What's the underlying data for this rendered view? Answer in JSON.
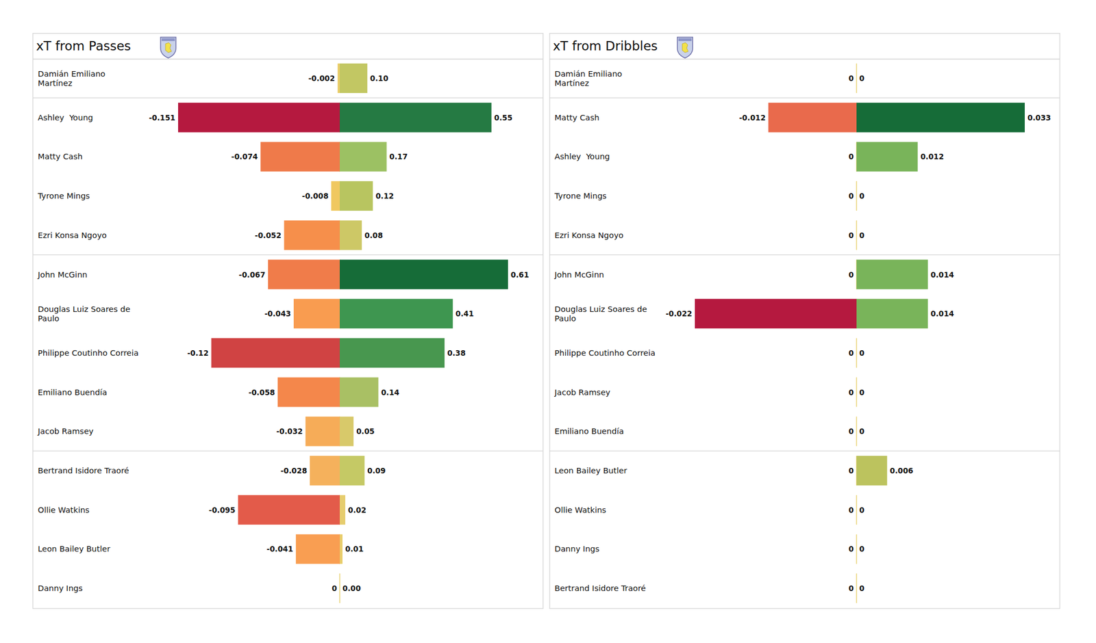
{
  "chart_data": [
    {
      "type": "bar",
      "orientation": "horizontal",
      "title": "xT from Passes",
      "data_labels": true,
      "tick_labels": false,
      "grid": false,
      "xlim": [
        -0.151,
        0.61
      ],
      "categories": [
        "Damián Emiliano\nMartínez",
        "Ashley  Young",
        "Matty Cash",
        "Tyrone Mings",
        "Ezri Konsa Ngoyo",
        "John McGinn",
        "Douglas Luiz Soares de\nPaulo",
        "Philippe Coutinho Correia",
        "Emiliano Buendía",
        "Jacob Ramsey",
        "Bertrand Isidore Traoré",
        "Ollie Watkins",
        "Leon Bailey Butler",
        "Danny Ings"
      ],
      "series": [
        {
          "values": [
            -0.002,
            -0.151,
            -0.074,
            -0.008,
            -0.052,
            -0.067,
            -0.043,
            -0.12,
            -0.058,
            -0.032,
            -0.028,
            -0.095,
            -0.041,
            0
          ],
          "value_labels": [
            "-0.002",
            "-0.151",
            "-0.074",
            "-0.008",
            "-0.052",
            "-0.067",
            "-0.043",
            "-0.12",
            "-0.058",
            "-0.032",
            "-0.028",
            "-0.095",
            "-0.041",
            "0"
          ],
          "colors": [
            "#eacd6a",
            "#b5193f",
            "#ef7a4a",
            "#f0c860",
            "#f68f4b",
            "#f07c4a",
            "#f99c50",
            "#d04343",
            "#f4874b",
            "#f6ac58",
            "#f5b15c",
            "#e35b4a",
            "#f99e52",
            "#e9d06f"
          ]
        },
        {
          "values": [
            0.1,
            0.55,
            0.17,
            0.12,
            0.08,
            0.61,
            0.41,
            0.38,
            0.14,
            0.05,
            0.09,
            0.02,
            0.01,
            0.0
          ],
          "value_labels": [
            "0.10",
            "0.55",
            "0.17",
            "0.12",
            "0.08",
            "0.61",
            "0.41",
            "0.38",
            "0.14",
            "0.05",
            "0.09",
            "0.02",
            "0.01",
            "0.00"
          ],
          "colors": [
            "#c2c763",
            "#257a43",
            "#9cc163",
            "#b8c560",
            "#cdc866",
            "#166c38",
            "#3e9650",
            "#48974f",
            "#a9c064",
            "#d8c96a",
            "#c5c965",
            "#e6cd6e",
            "#e8cd6c",
            "#e9d06f"
          ]
        }
      ]
    },
    {
      "type": "bar",
      "orientation": "horizontal",
      "title": "xT from Dribbles",
      "data_labels": true,
      "tick_labels": false,
      "grid": false,
      "xlim": [
        -0.022,
        0.033
      ],
      "categories": [
        "Damián Emiliano\nMartínez",
        "Matty Cash",
        "Ashley  Young",
        "Tyrone Mings",
        "Ezri Konsa Ngoyo",
        "John McGinn",
        "Douglas Luiz Soares de\nPaulo",
        "Philippe Coutinho Correia",
        "Jacob Ramsey",
        "Emiliano Buendía",
        "Leon Bailey Butler",
        "Ollie Watkins",
        "Danny Ings",
        "Bertrand Isidore Traoré"
      ],
      "series": [
        {
          "values": [
            0,
            -0.012,
            0,
            0,
            0,
            0,
            -0.022,
            0,
            0,
            0,
            0,
            0,
            0,
            0
          ],
          "value_labels": [
            "0",
            "-0.012",
            "0",
            "0",
            "0",
            "0",
            "-0.022",
            "0",
            "0",
            "0",
            "0",
            "0",
            "0",
            "0"
          ],
          "colors": [
            "#e9d06f",
            "#e96a4c",
            "#e9d06f",
            "#e9d06f",
            "#e9d06f",
            "#e9d06f",
            "#b5193f",
            "#e9d06f",
            "#e9d06f",
            "#e9d06f",
            "#e9d06f",
            "#e9d06f",
            "#e9d06f",
            "#e9d06f"
          ]
        },
        {
          "values": [
            0,
            0.033,
            0.012,
            0,
            0,
            0.014,
            0.014,
            0,
            0,
            0,
            0.006,
            0,
            0,
            0
          ],
          "value_labels": [
            "0",
            "0.033",
            "0.012",
            "0",
            "0",
            "0.014",
            "0.014",
            "0",
            "0",
            "0",
            "0.006",
            "0",
            "0",
            "0"
          ],
          "colors": [
            "#e9d06f",
            "#166c38",
            "#79b45a",
            "#e9d06f",
            "#e9d06f",
            "#79b45a",
            "#79b45a",
            "#e9d06f",
            "#e9d06f",
            "#e9d06f",
            "#bcc35e",
            "#e9d06f",
            "#e9d06f",
            "#e9d06f"
          ]
        }
      ]
    }
  ]
}
